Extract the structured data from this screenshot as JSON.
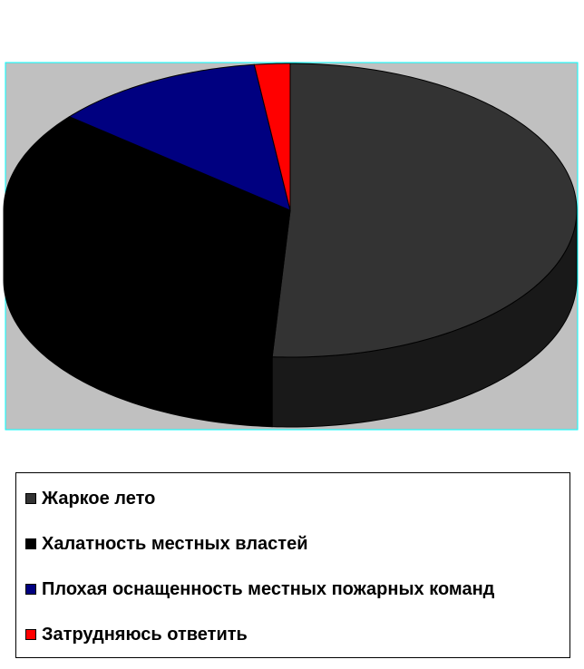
{
  "chart_data": {
    "type": "pie",
    "style": "3d",
    "categories": [
      "Жаркое лето",
      "Халатность местных властей",
      "Плохая оснащенность местных пожарных команд",
      "Затрудняюсь ответить"
    ],
    "values": [
      51,
      35,
      12,
      2
    ],
    "unit": "%",
    "colors": [
      "#333333",
      "#000000",
      "#000080",
      "#ff0000"
    ],
    "side_colors": [
      "#191919",
      "#000000",
      "#000040",
      "#800000"
    ],
    "plot_background": "#c0c0c0",
    "legend_position": "bottom",
    "title": ""
  }
}
